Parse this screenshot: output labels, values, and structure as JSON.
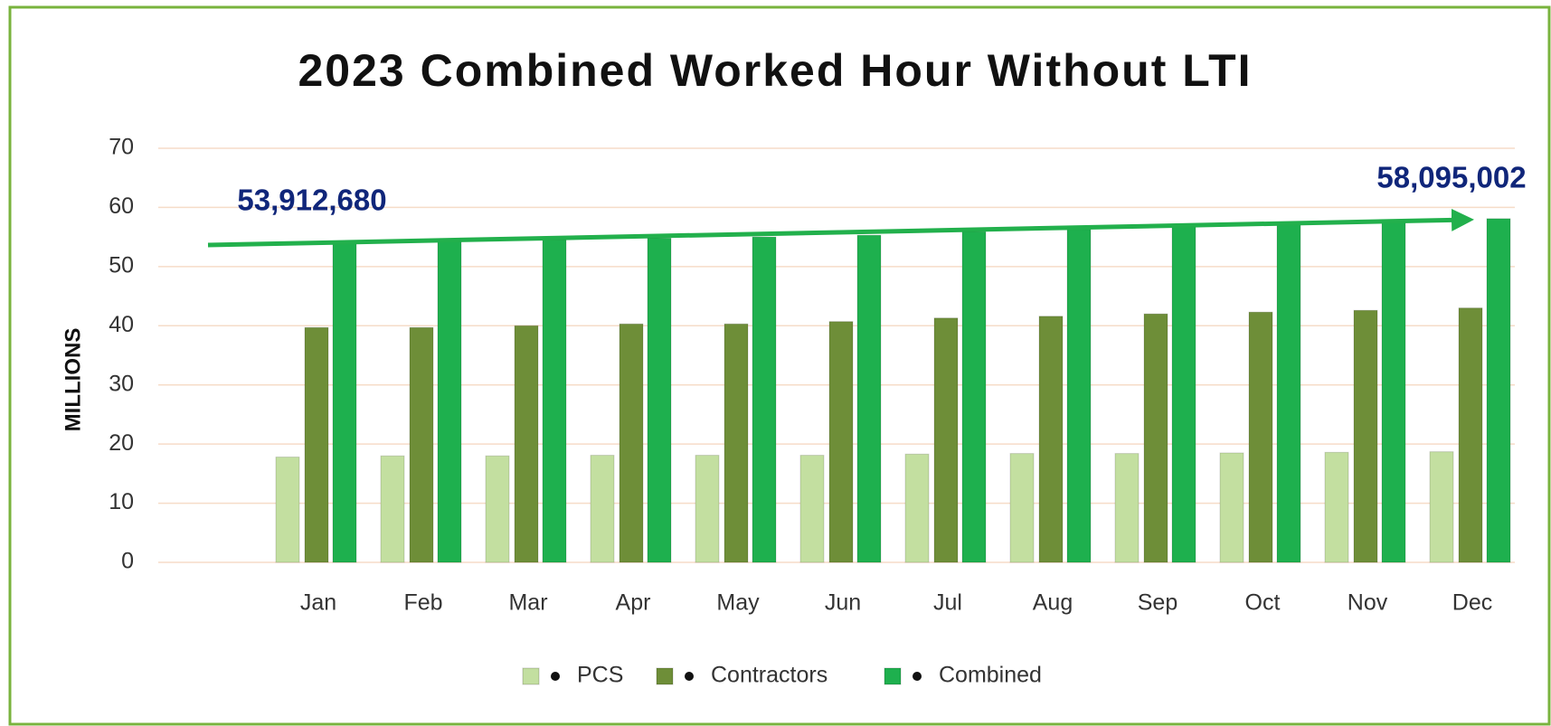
{
  "chart_data": {
    "type": "bar",
    "title": "2023 Combined Worked Hour Without LTI",
    "y_label": "MILLIONS",
    "categories": [
      "Jan",
      "Feb",
      "Mar",
      "Apr",
      "May",
      "Jun",
      "Jul",
      "Aug",
      "Sep",
      "Oct",
      "Nov",
      "Dec"
    ],
    "series": [
      {
        "name": "PCS",
        "color": "#c3dfa0",
        "values": [
          17.8,
          18.0,
          18.0,
          18.1,
          18.1,
          18.1,
          18.3,
          18.4,
          18.4,
          18.5,
          18.6,
          18.7
        ]
      },
      {
        "name": "Contractors",
        "color": "#6e8e38",
        "values": [
          39.7,
          39.7,
          40.0,
          40.3,
          40.3,
          40.7,
          41.3,
          41.6,
          42.0,
          42.3,
          42.6,
          43.0
        ]
      },
      {
        "name": "Combined",
        "color": "#1eb04e",
        "values": [
          53.9,
          54.2,
          54.5,
          54.8,
          55.0,
          55.3,
          55.9,
          56.3,
          56.7,
          57.1,
          57.4,
          58.1
        ]
      }
    ],
    "annotations": [
      "53,912,680",
      "58,095,002"
    ],
    "ylim": [
      0,
      70
    ],
    "yticks": [
      0,
      10,
      20,
      30,
      40,
      50,
      60,
      70
    ],
    "grid": true,
    "legend": "bottom"
  }
}
